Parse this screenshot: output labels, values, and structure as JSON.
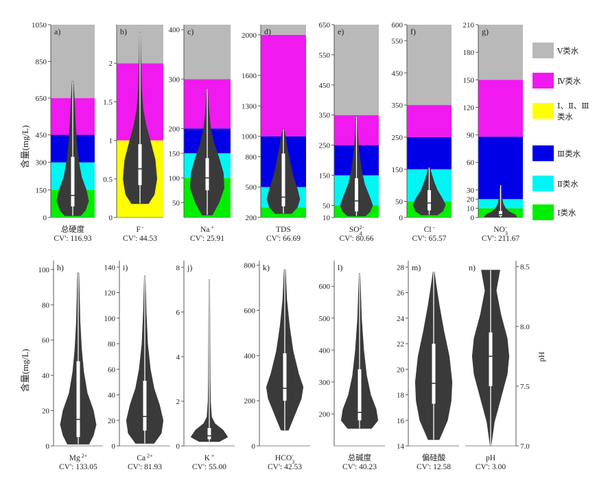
{
  "figure": {
    "y_label_top": "含量(mg/L)",
    "y_label_bottom": "含量(mg/L)",
    "y_label_right": "pH"
  },
  "legend": [
    {
      "label": "Ⅴ类水",
      "color": "#b9b9b9"
    },
    {
      "label": "Ⅳ类水",
      "color": "#f019f0"
    },
    {
      "label": "Ⅰ、Ⅱ、Ⅲ类水",
      "color": "#ffff00"
    },
    {
      "label": "Ⅲ类水",
      "color": "#0000e6"
    },
    {
      "label": "Ⅱ类水",
      "color": "#00f5f5"
    },
    {
      "label": "Ⅰ类水",
      "color": "#00ee00"
    }
  ],
  "violin_color": "#3a3a3a",
  "chart_data": [
    {
      "type": "violin",
      "panel": "a)",
      "name": "总硬度",
      "cv": "CV': 116.93",
      "ylim": [
        0,
        1050
      ],
      "ticks": [
        0,
        150,
        300,
        450,
        650,
        850,
        1050
      ],
      "bands": [
        [
          0,
          150,
          "#00ee00"
        ],
        [
          150,
          300,
          "#00f5f5"
        ],
        [
          300,
          450,
          "#0000e6"
        ],
        [
          450,
          650,
          "#f019f0"
        ],
        [
          650,
          1050,
          "#b9b9b9"
        ]
      ],
      "min": 10,
      "q1": 60,
      "median": 120,
      "q3": 330,
      "max": 740,
      "profile": [
        [
          10,
          0.5
        ],
        [
          40,
          0.8
        ],
        [
          90,
          1
        ],
        [
          150,
          0.85
        ],
        [
          220,
          0.55
        ],
        [
          300,
          0.38
        ],
        [
          400,
          0.25
        ],
        [
          520,
          0.16
        ],
        [
          640,
          0.1
        ],
        [
          740,
          0.03
        ]
      ]
    },
    {
      "type": "violin",
      "panel": "b)",
      "name": "F",
      "name_sup": "-",
      "cv": "CV': 44.53",
      "ylim": [
        0,
        2.5
      ],
      "ticks": [
        0,
        0.5,
        1,
        1.5,
        2
      ],
      "bands": [
        [
          0,
          1,
          "#ffff00"
        ],
        [
          1,
          2,
          "#f019f0"
        ],
        [
          2,
          2.5,
          "#b9b9b9"
        ]
      ],
      "min": 0.18,
      "q1": 0.42,
      "median": 0.63,
      "q3": 0.95,
      "max": 2.4,
      "profile": [
        [
          0.18,
          0.5
        ],
        [
          0.3,
          0.85
        ],
        [
          0.5,
          1
        ],
        [
          0.75,
          0.9
        ],
        [
          1.0,
          0.6
        ],
        [
          1.2,
          0.35
        ],
        [
          1.4,
          0.18
        ],
        [
          1.7,
          0.08
        ],
        [
          2.1,
          0.04
        ],
        [
          2.4,
          0.02
        ]
      ]
    },
    {
      "type": "violin",
      "panel": "c)",
      "name": "Na",
      "name_sup": "+",
      "cv": "CV': 25.91",
      "ylim": [
        20,
        410
      ],
      "ticks": [
        50,
        100,
        150,
        200,
        300,
        400
      ],
      "bands": [
        [
          20,
          100,
          "#00ee00"
        ],
        [
          100,
          150,
          "#00f5f5"
        ],
        [
          150,
          200,
          "#0000e6"
        ],
        [
          200,
          300,
          "#f019f0"
        ],
        [
          300,
          410,
          "#b9b9b9"
        ]
      ],
      "min": 25,
      "q1": 75,
      "median": 100,
      "q3": 140,
      "max": 280,
      "profile": [
        [
          25,
          0.3
        ],
        [
          50,
          0.7
        ],
        [
          80,
          1
        ],
        [
          110,
          0.95
        ],
        [
          140,
          0.7
        ],
        [
          170,
          0.4
        ],
        [
          200,
          0.2
        ],
        [
          240,
          0.08
        ],
        [
          280,
          0.02
        ]
      ]
    },
    {
      "type": "violin",
      "panel": "d)",
      "name": "TDS",
      "cv": "CV': 66.69",
      "ylim": [
        200,
        2100
      ],
      "ticks": [
        200,
        500,
        800,
        1000,
        1300,
        1600,
        2000
      ],
      "bands": [
        [
          200,
          300,
          "#00ee00"
        ],
        [
          300,
          500,
          "#00f5f5"
        ],
        [
          500,
          1000,
          "#0000e6"
        ],
        [
          1000,
          2000,
          "#f019f0"
        ],
        [
          2000,
          2100,
          "#b9b9b9"
        ]
      ],
      "min": 240,
      "q1": 310,
      "median": 400,
      "q3": 830,
      "max": 1070,
      "profile": [
        [
          240,
          0.5
        ],
        [
          300,
          0.85
        ],
        [
          380,
          1
        ],
        [
          480,
          0.85
        ],
        [
          600,
          0.6
        ],
        [
          750,
          0.4
        ],
        [
          900,
          0.22
        ],
        [
          1000,
          0.12
        ],
        [
          1070,
          0.03
        ]
      ]
    },
    {
      "type": "violin",
      "panel": "e)",
      "name": "SO",
      "name_sub": "4",
      "name_sup": "2-",
      "cv": "CV': 80.66",
      "ylim": [
        10,
        650
      ],
      "ticks": [
        10,
        50,
        150,
        250,
        350,
        450,
        550,
        650
      ],
      "bands": [
        [
          10,
          50,
          "#00ee00"
        ],
        [
          50,
          150,
          "#00f5f5"
        ],
        [
          150,
          250,
          "#0000e6"
        ],
        [
          250,
          350,
          "#f019f0"
        ],
        [
          350,
          650,
          "#b9b9b9"
        ]
      ],
      "min": 15,
      "q1": 30,
      "median": 65,
      "q3": 140,
      "max": 345,
      "profile": [
        [
          15,
          0.55
        ],
        [
          30,
          0.85
        ],
        [
          50,
          1
        ],
        [
          80,
          0.8
        ],
        [
          120,
          0.5
        ],
        [
          170,
          0.3
        ],
        [
          230,
          0.15
        ],
        [
          290,
          0.06
        ],
        [
          345,
          0.02
        ]
      ]
    },
    {
      "type": "violin",
      "panel": "f)",
      "name": "Cl",
      "name_sup": "-",
      "cv": "CV': 65.57",
      "ylim": [
        0,
        600
      ],
      "ticks": [
        0,
        50,
        150,
        250,
        350,
        450,
        550,
        600
      ],
      "bands": [
        [
          0,
          50,
          "#00ee00"
        ],
        [
          50,
          150,
          "#00f5f5"
        ],
        [
          150,
          250,
          "#0000e6"
        ],
        [
          250,
          350,
          "#f019f0"
        ],
        [
          350,
          600,
          "#b9b9b9"
        ]
      ],
      "min": 8,
      "q1": 22,
      "median": 45,
      "q3": 85,
      "max": 155,
      "profile": [
        [
          8,
          0.5
        ],
        [
          20,
          0.85
        ],
        [
          40,
          1
        ],
        [
          60,
          0.8
        ],
        [
          85,
          0.5
        ],
        [
          110,
          0.3
        ],
        [
          135,
          0.14
        ],
        [
          155,
          0.03
        ]
      ]
    },
    {
      "type": "violin",
      "panel": "g)",
      "name": "NO",
      "name_sub": "3",
      "name_sup": "-",
      "cv": "CV': 211.67",
      "ylim": [
        0,
        210
      ],
      "ticks": [
        0,
        10,
        20,
        30,
        60,
        90,
        120,
        150,
        180,
        210
      ],
      "bands": [
        [
          0,
          10,
          "#00ee00"
        ],
        [
          10,
          20,
          "#00f5f5"
        ],
        [
          20,
          88,
          "#0000e6"
        ],
        [
          88,
          150,
          "#f019f0"
        ],
        [
          150,
          210,
          "#b9b9b9"
        ]
      ],
      "min": 0.5,
      "q1": 1.5,
      "median": 3,
      "q3": 7,
      "max": 35,
      "profile": [
        [
          0.5,
          1
        ],
        [
          3,
          0.9
        ],
        [
          6,
          0.55
        ],
        [
          10,
          0.3
        ],
        [
          15,
          0.15
        ],
        [
          22,
          0.08
        ],
        [
          35,
          0.02
        ]
      ]
    },
    {
      "type": "violin",
      "panel": "h)",
      "name": "Mg",
      "name_sup": "2+",
      "cv": "CV': 133.05",
      "ylim": [
        0,
        105
      ],
      "ticks": [
        0,
        20,
        40,
        60,
        80,
        100
      ],
      "min": 1,
      "q1": 5,
      "median": 15,
      "q3": 48,
      "max": 98,
      "profile": [
        [
          1,
          0.6
        ],
        [
          6,
          0.85
        ],
        [
          12,
          1
        ],
        [
          20,
          0.85
        ],
        [
          30,
          0.5
        ],
        [
          42,
          0.3
        ],
        [
          55,
          0.18
        ],
        [
          70,
          0.1
        ],
        [
          85,
          0.06
        ],
        [
          98,
          0.03
        ]
      ]
    },
    {
      "type": "violin",
      "panel": "i)",
      "name": "Ca",
      "name_sup": "2+",
      "cv": "CV': 81.93",
      "ylim": [
        0,
        145
      ],
      "ticks": [
        0,
        20,
        40,
        60,
        80,
        100,
        120,
        140
      ],
      "min": 2,
      "q1": 12,
      "median": 23,
      "q3": 51,
      "max": 133,
      "profile": [
        [
          2,
          0.5
        ],
        [
          10,
          0.9
        ],
        [
          20,
          1
        ],
        [
          32,
          0.8
        ],
        [
          45,
          0.5
        ],
        [
          60,
          0.3
        ],
        [
          80,
          0.15
        ],
        [
          105,
          0.07
        ],
        [
          133,
          0.02
        ]
      ]
    },
    {
      "type": "violin",
      "panel": "j)",
      "name": "K",
      "name_sup": "+",
      "cv": "CV': 55.00",
      "ylim": [
        0,
        8.3
      ],
      "ticks": [
        0,
        2,
        4,
        6,
        8
      ],
      "min": 0.2,
      "q1": 0.3,
      "median": 0.45,
      "q3": 0.8,
      "max": 7.45,
      "profile": [
        [
          0.2,
          0.55
        ],
        [
          0.4,
          1
        ],
        [
          0.7,
          0.75
        ],
        [
          1.0,
          0.3
        ],
        [
          1.3,
          0.12
        ],
        [
          2,
          0.06
        ],
        [
          3,
          0.04
        ],
        [
          5,
          0.03
        ],
        [
          7.45,
          0.02
        ]
      ]
    },
    {
      "type": "violin",
      "panel": "k)",
      "name": "HCO",
      "name_sub": "3",
      "name_sup": "-",
      "cv": "CV': 42.53",
      "ylim": [
        0,
        820
      ],
      "ticks": [
        0,
        200,
        400,
        600,
        800
      ],
      "min": 70,
      "q1": 200,
      "median": 255,
      "q3": 410,
      "max": 780,
      "profile": [
        [
          70,
          0.2
        ],
        [
          140,
          0.55
        ],
        [
          210,
          0.9
        ],
        [
          260,
          1
        ],
        [
          320,
          0.75
        ],
        [
          420,
          0.45
        ],
        [
          530,
          0.25
        ],
        [
          650,
          0.1
        ],
        [
          780,
          0.03
        ]
      ]
    },
    {
      "type": "violin",
      "panel": "l)",
      "name": "总碱度",
      "cv": "CV': 40.23",
      "ylim": [
        100,
        680
      ],
      "ticks": [
        200,
        300,
        400,
        500,
        600
      ],
      "min": 155,
      "q1": 180,
      "median": 205,
      "q3": 340,
      "max": 640,
      "profile": [
        [
          155,
          0.65
        ],
        [
          180,
          1
        ],
        [
          215,
          0.9
        ],
        [
          260,
          0.6
        ],
        [
          320,
          0.38
        ],
        [
          400,
          0.22
        ],
        [
          500,
          0.1
        ],
        [
          640,
          0.02
        ]
      ]
    },
    {
      "type": "violin",
      "panel": "m)",
      "name": "偏硅酸",
      "cv": "CV': 12.58",
      "ylim": [
        14,
        28.5
      ],
      "ticks": [
        14,
        16,
        18,
        20,
        22,
        24,
        26,
        28
      ],
      "min": 14.5,
      "q1": 17.3,
      "median": 18.9,
      "q3": 22,
      "max": 27.6,
      "profile": [
        [
          14.5,
          0.3
        ],
        [
          16,
          0.75
        ],
        [
          17.5,
          0.95
        ],
        [
          19,
          1
        ],
        [
          21,
          0.85
        ],
        [
          23,
          0.55
        ],
        [
          25,
          0.3
        ],
        [
          26.5,
          0.14
        ],
        [
          27.6,
          0.03
        ]
      ]
    },
    {
      "type": "violin",
      "panel": "n)",
      "name": "pH",
      "cv": "CV': 3.00",
      "ylim": [
        7.0,
        8.55
      ],
      "ticks": [
        7.0,
        7.5,
        8.0,
        8.5
      ],
      "axis_side": "right",
      "min": 7.0,
      "q1": 7.5,
      "median": 7.75,
      "q3": 7.95,
      "max": 8.47,
      "profile": [
        [
          7.0,
          0.02
        ],
        [
          7.2,
          0.2
        ],
        [
          7.4,
          0.55
        ],
        [
          7.6,
          0.9
        ],
        [
          7.75,
          1
        ],
        [
          7.9,
          0.9
        ],
        [
          8.1,
          0.55
        ],
        [
          8.3,
          0.3
        ],
        [
          8.47,
          0.5
        ]
      ]
    }
  ]
}
